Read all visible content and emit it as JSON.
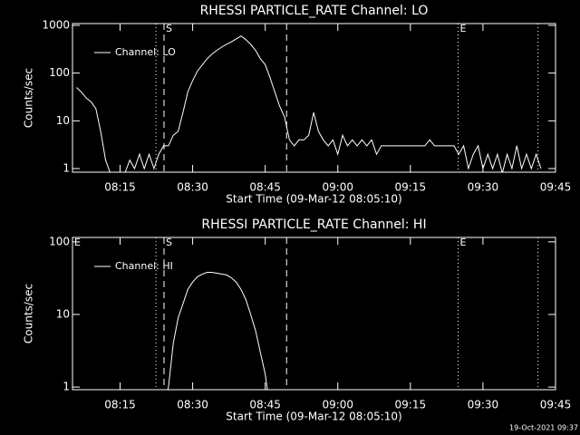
{
  "chart_data": [
    {
      "type": "line",
      "title": "RHESSI PARTICLE_RATE Channel: LO",
      "x_label": "Start Time (09-Mar-12 08:05:10)",
      "y_label": "Counts/sec",
      "x": [
        "08:06",
        "08:07",
        "08:08",
        "08:09",
        "08:10",
        "08:11",
        "08:12",
        "08:13",
        "08:14",
        "08:15",
        "08:16",
        "08:17",
        "08:18",
        "08:19",
        "08:20",
        "08:21",
        "08:22",
        "08:23",
        "08:24",
        "08:25",
        "08:26",
        "08:27",
        "08:28",
        "08:29",
        "08:30",
        "08:31",
        "08:32",
        "08:33",
        "08:34",
        "08:35",
        "08:36",
        "08:37",
        "08:38",
        "08:39",
        "08:40",
        "08:41",
        "08:42",
        "08:43",
        "08:44",
        "08:45",
        "08:46",
        "08:47",
        "08:48",
        "08:49",
        "08:50",
        "08:51",
        "08:52",
        "08:53",
        "08:54",
        "08:55",
        "08:56",
        "08:57",
        "08:58",
        "08:59",
        "09:00",
        "09:01",
        "09:02",
        "09:03",
        "09:04",
        "09:05",
        "09:06",
        "09:07",
        "09:08",
        "09:09",
        "09:10",
        "09:11",
        "09:12",
        "09:13",
        "09:14",
        "09:15",
        "09:16",
        "09:17",
        "09:18",
        "09:19",
        "09:20",
        "09:21",
        "09:22",
        "09:23",
        "09:24",
        "09:25",
        "09:26",
        "09:27",
        "09:28",
        "09:29",
        "09:30",
        "09:31",
        "09:32",
        "09:33",
        "09:34",
        "09:35",
        "09:36",
        "09:37",
        "09:38",
        "09:39",
        "09:40",
        "09:41",
        "09:42"
      ],
      "series": [
        {
          "name": "Channel: LO",
          "color": "#ffffff",
          "values": [
            50,
            40,
            30,
            25,
            18,
            6,
            1.5,
            0.8,
            0.8,
            0.8,
            0.8,
            1.5,
            1,
            2,
            1,
            2,
            1,
            2,
            3,
            3,
            5,
            6,
            15,
            40,
            70,
            110,
            150,
            200,
            250,
            300,
            350,
            400,
            450,
            520,
            600,
            500,
            400,
            300,
            200,
            150,
            80,
            40,
            20,
            12,
            4,
            3,
            4,
            4,
            5,
            15,
            6,
            4,
            3,
            4,
            2,
            5,
            3,
            4,
            3,
            4,
            3,
            4,
            2,
            3,
            3,
            3,
            3,
            3,
            3,
            3,
            3,
            3,
            3,
            4,
            3,
            3,
            3,
            3,
            3,
            2,
            3,
            1,
            2,
            3,
            1,
            2,
            1,
            2,
            0.8,
            2,
            1,
            3,
            1,
            2,
            1,
            2,
            1
          ]
        }
      ],
      "xlim": [
        "08:05:10",
        "09:45"
      ],
      "xticks": [
        "08:15",
        "08:30",
        "08:45",
        "09:00",
        "09:15",
        "09:30",
        "09:45"
      ],
      "ylim": [
        0.84,
        1090
      ],
      "yticks": [
        1,
        10,
        100,
        1000
      ],
      "log_y": true,
      "legend": "upper left",
      "markers": [
        {
          "x": "08:22:25",
          "style": "dotted"
        },
        {
          "x": "08:24:05",
          "style": "dashed"
        },
        {
          "x": "08:49:25",
          "style": "dashed"
        },
        {
          "x": "09:24:52",
          "style": "dotted"
        },
        {
          "x": "09:41:22",
          "style": "dotted"
        }
      ],
      "marker_labels": [
        {
          "x": "08:24:05",
          "text": "S"
        },
        {
          "x": "09:24:52",
          "text": "E"
        }
      ]
    },
    {
      "type": "line",
      "title": "RHESSI PARTICLE_RATE Channel: HI",
      "x_label": "Start Time (09-Mar-12 08:05:10)",
      "y_label": "Counts/sec",
      "x": [
        "08:24",
        "08:25",
        "08:26",
        "08:27",
        "08:28",
        "08:29",
        "08:30",
        "08:31",
        "08:32",
        "08:33",
        "08:34",
        "08:35",
        "08:36",
        "08:37",
        "08:38",
        "08:39",
        "08:40",
        "08:41",
        "08:42",
        "08:43",
        "08:44",
        "08:45",
        "08:46"
      ],
      "series": [
        {
          "name": "Channel: HI",
          "color": "#ffffff",
          "values": [
            0.5,
            1,
            4,
            9,
            14,
            22,
            28,
            33,
            36,
            38,
            38,
            37,
            36,
            35,
            32,
            28,
            22,
            16,
            10,
            6,
            3,
            1.5,
            0.5
          ]
        }
      ],
      "xlim": [
        "08:05:10",
        "09:45"
      ],
      "xticks": [
        "08:15",
        "08:30",
        "08:45",
        "09:00",
        "09:15",
        "09:30",
        "09:45"
      ],
      "ylim": [
        0.92,
        115
      ],
      "yticks": [
        1,
        10,
        100
      ],
      "log_y": true,
      "legend": "upper left",
      "markers": [
        {
          "x": "08:22:25",
          "style": "dotted"
        },
        {
          "x": "08:24:05",
          "style": "dashed"
        },
        {
          "x": "08:49:25",
          "style": "dashed"
        },
        {
          "x": "09:24:52",
          "style": "dotted"
        },
        {
          "x": "09:41:22",
          "style": "dotted"
        }
      ],
      "marker_labels": [
        {
          "x": "08:05:10",
          "text": "E"
        },
        {
          "x": "08:24:05",
          "text": "S"
        },
        {
          "x": "09:24:52",
          "text": "E"
        }
      ]
    }
  ],
  "footer": "19-Oct-2021 09:37"
}
